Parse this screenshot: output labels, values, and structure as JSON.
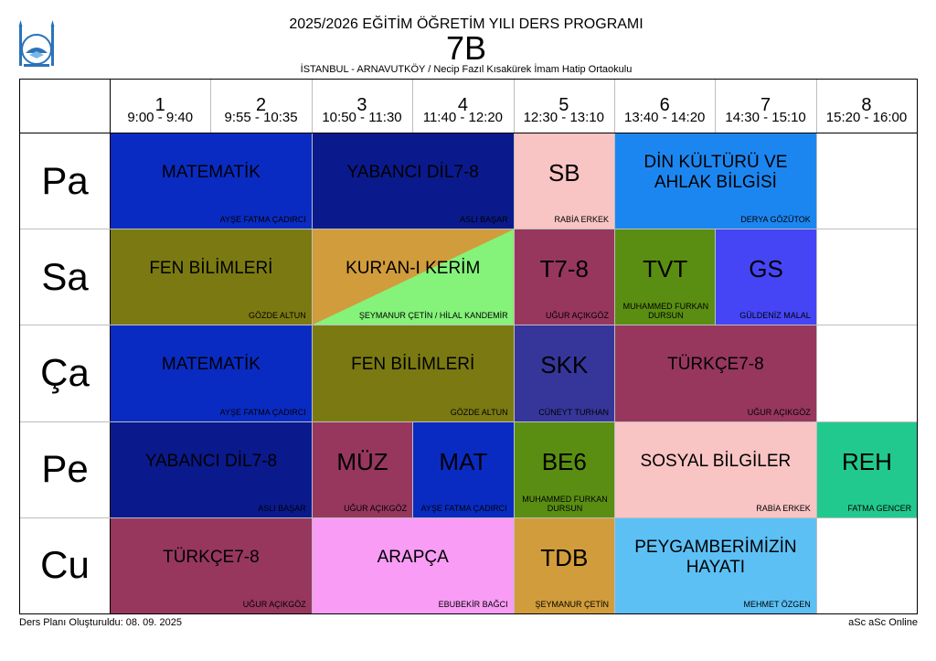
{
  "header": {
    "title": "2025/2026 EĞİTİM ÖĞRETİM YILI DERS PROGRAMI",
    "class_name": "7B",
    "school": "İSTANBUL - ARNAVUTKÖY / Necip Fazıl Kısakürek İmam Hatip Ortaokulu"
  },
  "periods": [
    {
      "num": "1",
      "time": "9:00 - 9:40"
    },
    {
      "num": "2",
      "time": "9:55 - 10:35"
    },
    {
      "num": "3",
      "time": "10:50 - 11:30"
    },
    {
      "num": "4",
      "time": "11:40 - 12:20"
    },
    {
      "num": "5",
      "time": "12:30 - 13:10"
    },
    {
      "num": "6",
      "time": "13:40 - 14:20"
    },
    {
      "num": "7",
      "time": "14:30 - 15:10"
    },
    {
      "num": "8",
      "time": "15:20 - 16:00"
    }
  ],
  "days": [
    "Pa",
    "Sa",
    "Ça",
    "Pe",
    "Cu"
  ],
  "lessons": [
    {
      "day": 0,
      "start": 1,
      "span": 2,
      "subject": "MATEMATİK",
      "teacher": "AYŞE FATMA ÇADIRCI",
      "color": "#0a2bc2"
    },
    {
      "day": 0,
      "start": 3,
      "span": 2,
      "subject": "YABANCI DİL7-8",
      "teacher": "ASLI BAŞAR",
      "color": "#0a1a8c"
    },
    {
      "day": 0,
      "start": 5,
      "span": 1,
      "subject": "SB",
      "teacher": "RABİA  ERKEK",
      "color": "#f9c4c4",
      "big": true
    },
    {
      "day": 0,
      "start": 6,
      "span": 2,
      "subject": "DİN KÜLTÜRÜ VE AHLAK BİLGİSİ",
      "teacher": "DERYA GÖZÜTOK",
      "color": "#1c86f0"
    },
    {
      "day": 1,
      "start": 1,
      "span": 2,
      "subject": "FEN BİLİMLERİ",
      "teacher": "GÖZDE ALTUN",
      "color": "#7b7a12"
    },
    {
      "day": 1,
      "start": 3,
      "span": 2,
      "subject": "KUR'AN-I KERİM",
      "teacher": "ŞEYMANUR ÇETİN / HİLAL KANDEMİR",
      "color": "#d19c3b",
      "color2": "#85f27a"
    },
    {
      "day": 1,
      "start": 5,
      "span": 1,
      "subject": "T7-8",
      "teacher": "UĞUR AÇIKGÖZ",
      "color": "#97375e",
      "big": true
    },
    {
      "day": 1,
      "start": 6,
      "span": 1,
      "subject": "TVT",
      "teacher": "MUHAMMED FURKAN DURSUN",
      "color": "#5a8e12",
      "big": true,
      "two": true
    },
    {
      "day": 1,
      "start": 7,
      "span": 1,
      "subject": "GS",
      "teacher": "GÜLDENİZ MALAL",
      "color": "#4545f5",
      "big": true
    },
    {
      "day": 2,
      "start": 1,
      "span": 2,
      "subject": "MATEMATİK",
      "teacher": "AYŞE FATMA ÇADIRCI",
      "color": "#0a2bc2"
    },
    {
      "day": 2,
      "start": 3,
      "span": 2,
      "subject": "FEN BİLİMLERİ",
      "teacher": "GÖZDE ALTUN",
      "color": "#7b7a12"
    },
    {
      "day": 2,
      "start": 5,
      "span": 1,
      "subject": "SKK",
      "teacher": "CÜNEYT TURHAN",
      "color": "#36369a",
      "big": true
    },
    {
      "day": 2,
      "start": 6,
      "span": 2,
      "subject": "TÜRKÇE7-8",
      "teacher": "UĞUR AÇIKGÖZ",
      "color": "#97375e"
    },
    {
      "day": 3,
      "start": 1,
      "span": 2,
      "subject": "YABANCI DİL7-8",
      "teacher": "ASLI BAŞAR",
      "color": "#0a1a8c"
    },
    {
      "day": 3,
      "start": 3,
      "span": 1,
      "subject": "MÜZ",
      "teacher": "UĞUR AÇIKGÖZ",
      "color": "#97375e",
      "big": true
    },
    {
      "day": 3,
      "start": 4,
      "span": 1,
      "subject": "MAT",
      "teacher": "AYŞE FATMA ÇADIRCI",
      "color": "#0a2bc2",
      "big": true,
      "two": true
    },
    {
      "day": 3,
      "start": 5,
      "span": 1,
      "subject": "BE6",
      "teacher": "MUHAMMED FURKAN DURSUN",
      "color": "#5a8e12",
      "big": true,
      "two": true
    },
    {
      "day": 3,
      "start": 6,
      "span": 2,
      "subject": "SOSYAL BİLGİLER",
      "teacher": "RABİA  ERKEK",
      "color": "#f9c4c4"
    },
    {
      "day": 3,
      "start": 8,
      "span": 1,
      "subject": "REH",
      "teacher": "FATMA GENCER",
      "color": "#22c98e",
      "big": true
    },
    {
      "day": 4,
      "start": 1,
      "span": 2,
      "subject": "TÜRKÇE7-8",
      "teacher": "UĞUR AÇIKGÖZ",
      "color": "#97375e"
    },
    {
      "day": 4,
      "start": 3,
      "span": 2,
      "subject": "ARAPÇA",
      "teacher": "EBUBEKİR BAĞCI",
      "color": "#f89cf5"
    },
    {
      "day": 4,
      "start": 5,
      "span": 1,
      "subject": "TDB",
      "teacher": "ŞEYMANUR ÇETİN",
      "color": "#d19c3b",
      "big": true
    },
    {
      "day": 4,
      "start": 6,
      "span": 2,
      "subject": "PEYGAMBERİMİZİN HAYATI",
      "teacher": "MEHMET ÖZGEN",
      "color": "#5cc0f5"
    }
  ],
  "footer": {
    "created": "Ders Planı Oluşturuldu: 08. 09. 2025",
    "brand": "aSc aSc Online"
  }
}
